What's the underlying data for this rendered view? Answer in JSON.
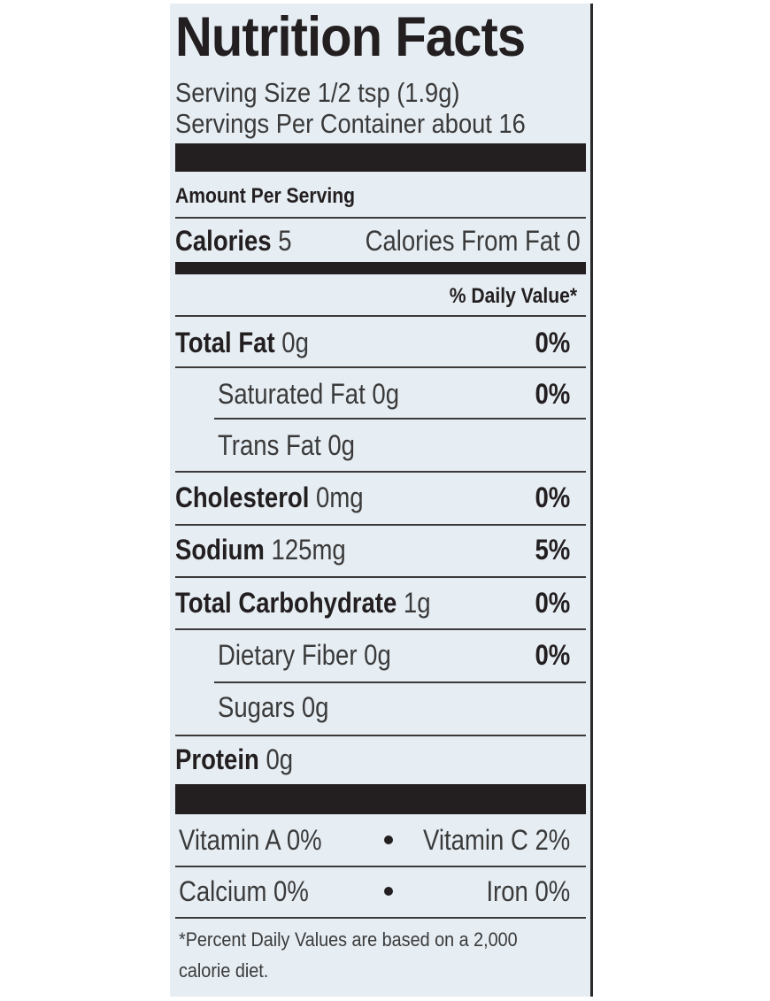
{
  "label": {
    "title": "Nutrition Facts",
    "serving_size": "Serving Size 1/2 tsp (1.9g)",
    "servings_per_container": "Servings Per Container about 16",
    "amount_per_serving": "Amount Per Serving",
    "calories_label": "Calories",
    "calories_value": "5",
    "calories_from_fat": "Calories From Fat 0",
    "daily_value_header": "% Daily Value*",
    "nutrients": [
      {
        "name": "Total Fat",
        "amount": "0g",
        "dv": "0%"
      },
      {
        "name": "Saturated Fat",
        "amount": "0g",
        "dv": "0%"
      },
      {
        "name": "Trans Fat",
        "amount": "0g",
        "dv": ""
      },
      {
        "name": "Cholesterol",
        "amount": "0mg",
        "dv": "0%"
      },
      {
        "name": "Sodium",
        "amount": "125mg",
        "dv": "5%"
      },
      {
        "name": "Total Carbohydrate",
        "amount": "1g",
        "dv": "0%"
      },
      {
        "name": "Dietary Fiber",
        "amount": "0g",
        "dv": "0%"
      },
      {
        "name": "Sugars",
        "amount": "0g",
        "dv": ""
      },
      {
        "name": "Protein",
        "amount": "0g",
        "dv": ""
      }
    ],
    "vitamins": {
      "vitamin_a": "Vitamin A 0%",
      "vitamin_c": "Vitamin C 2%",
      "calcium": "Calcium 0%",
      "iron": "Iron 0%"
    },
    "footnote_line1": "*Percent Daily Values are based on a 2,000",
    "footnote_line2": "calorie diet."
  }
}
